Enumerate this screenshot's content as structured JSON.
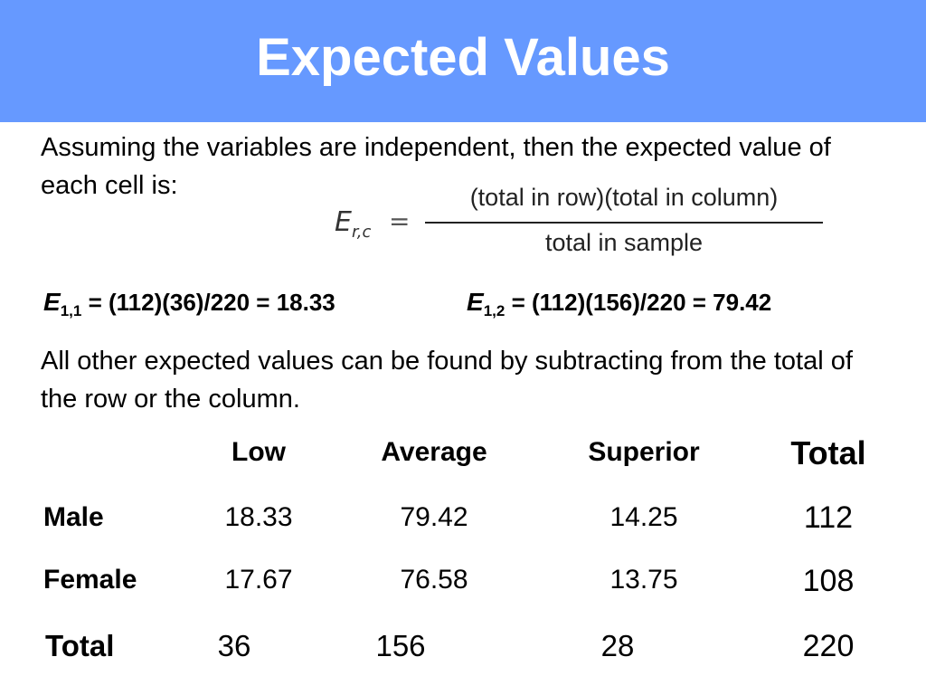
{
  "header": {
    "title": "Expected Values"
  },
  "intro": "Assuming the variables are independent, then the expected value of each cell is:",
  "formula": {
    "symbol": "E",
    "subscript": "r,c",
    "equals": "=",
    "numerator": "(total in row)(total in column)",
    "denominator": "total in sample"
  },
  "examples": [
    {
      "symbol": "E",
      "subscript": "1,1",
      "expression": "= (112)(36)/220 = 18.33"
    },
    {
      "symbol": "E",
      "subscript": "1,2",
      "expression": "= (112)(156)/220 = 79.42"
    }
  ],
  "note": "All other expected values can be found by subtracting from the total of the row or the column.",
  "table": {
    "columns": [
      "Low",
      "Average",
      "Superior",
      "Total"
    ],
    "rows": [
      {
        "label": "Male",
        "cells": [
          "18.33",
          "79.42",
          "14.25",
          "112"
        ]
      },
      {
        "label": "Female",
        "cells": [
          "17.67",
          "76.58",
          "13.75",
          "108"
        ]
      },
      {
        "label": "Total",
        "cells": [
          "36",
          "156",
          "28",
          "220"
        ]
      }
    ]
  }
}
